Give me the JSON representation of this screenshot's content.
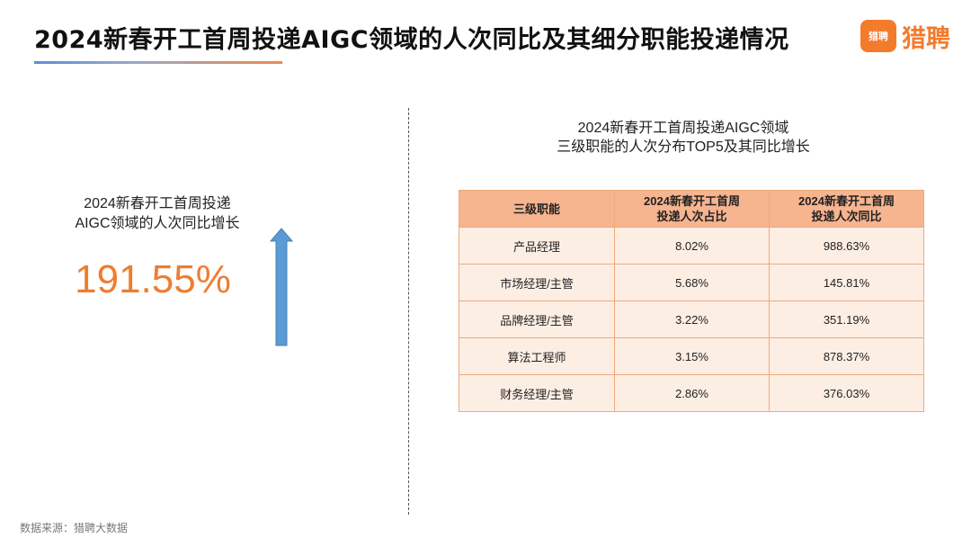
{
  "header": {
    "title": "2024新春开工首周投递AIGC领域的人次同比及其细分职能投递情况",
    "logo_badge": "猎聘",
    "logo_text": "猎聘"
  },
  "left_panel": {
    "caption_line1": "2024新春开工首周投递",
    "caption_line2": "AIGC领域的人次同比增长",
    "value": "191.55%",
    "arrow_direction": "up",
    "arrow_color": "#5b9bd5"
  },
  "right_panel": {
    "caption_line1": "2024新春开工首周投递AIGC领域",
    "caption_line2": "三级职能的人次分布TOP5及其同比增长",
    "table": {
      "headers": [
        {
          "line1": "三级职能",
          "line2": ""
        },
        {
          "line1": "2024新春开工首周",
          "line2": "投递人次占比"
        },
        {
          "line1": "2024新春开工首周",
          "line2": "投递人次同比"
        }
      ],
      "rows": [
        {
          "role": "产品经理",
          "share": "8.02%",
          "yoy": "988.63%"
        },
        {
          "role": "市场经理/主管",
          "share": "5.68%",
          "yoy": "145.81%"
        },
        {
          "role": "品牌经理/主管",
          "share": "3.22%",
          "yoy": "351.19%"
        },
        {
          "role": "算法工程师",
          "share": "3.15%",
          "yoy": "878.37%"
        },
        {
          "role": "财务经理/主管",
          "share": "2.86%",
          "yoy": "376.03%"
        }
      ]
    }
  },
  "footer": {
    "source": "数据来源：猎聘大数据"
  },
  "colors": {
    "accent": "#ee7d31",
    "table_header": "#f6b48f",
    "table_cell": "#fdeee4",
    "brand": "#f37b2c"
  }
}
